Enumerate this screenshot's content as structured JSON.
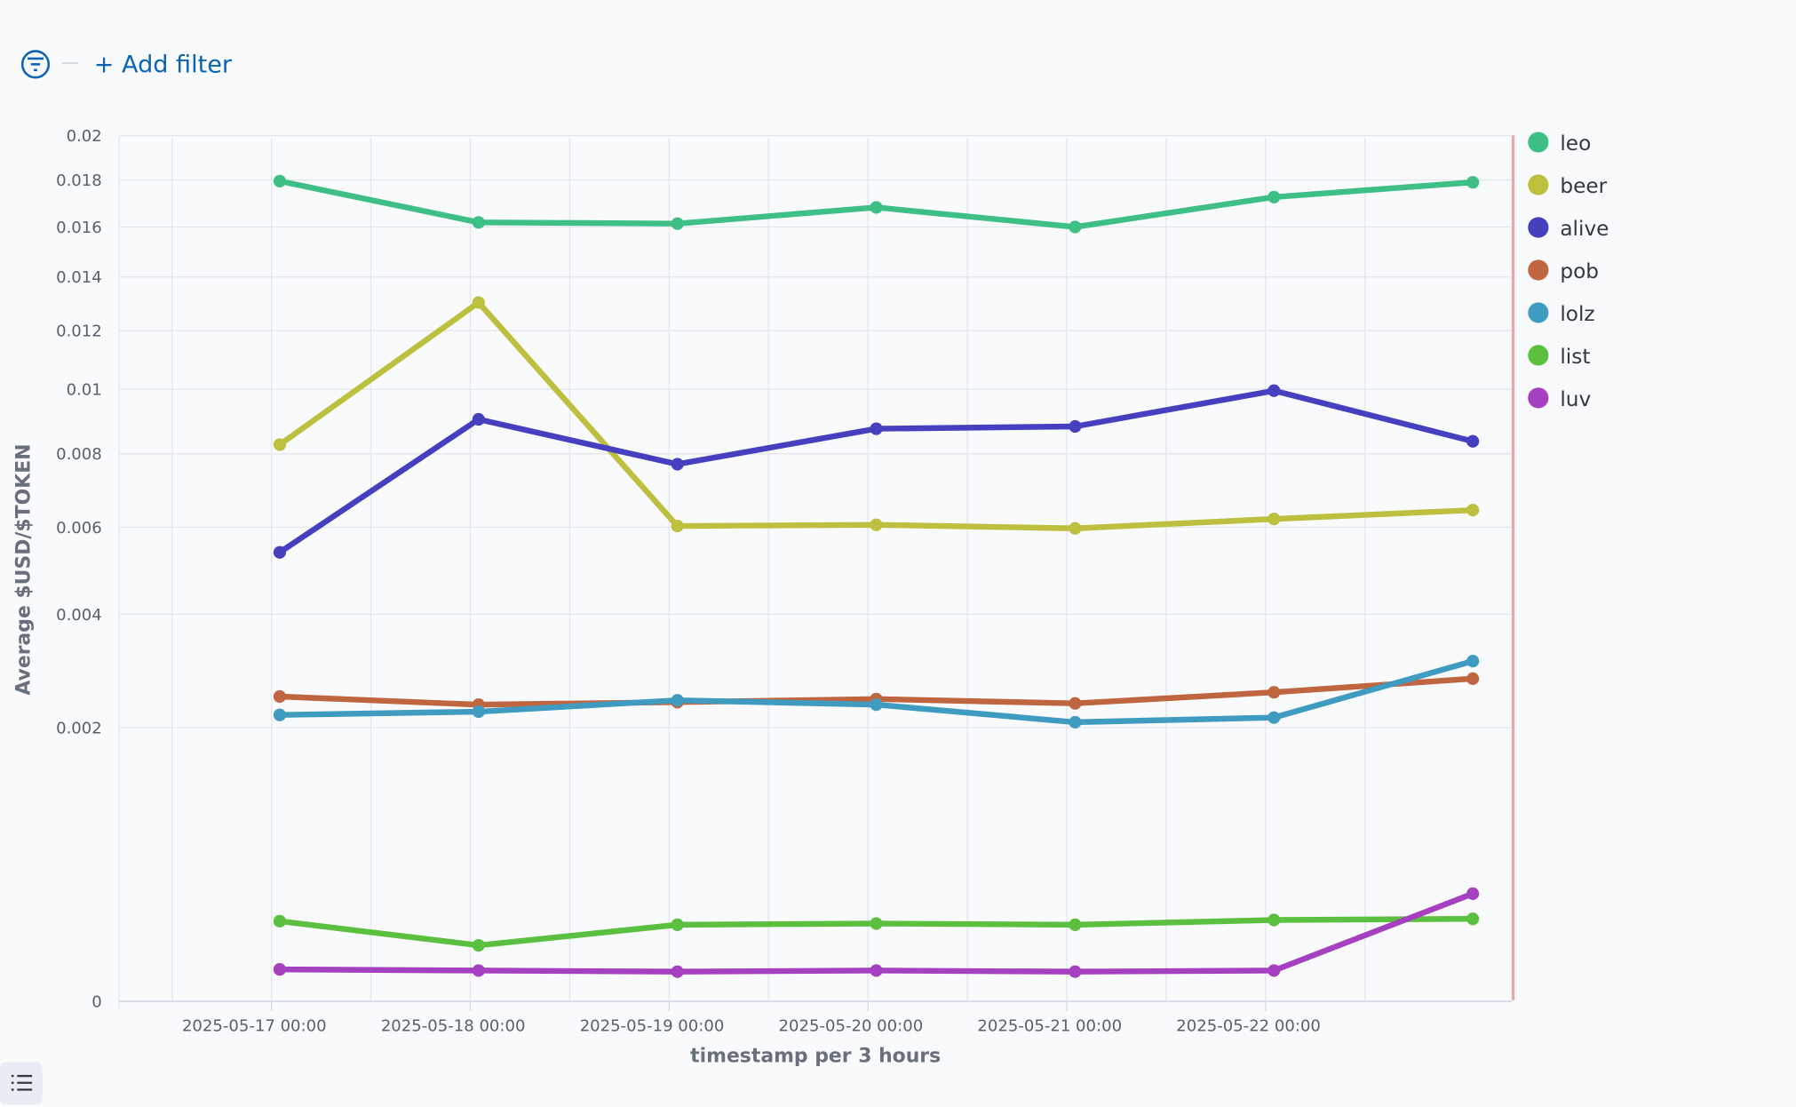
{
  "filter_bar": {
    "add_filter_label": "+ Add filter",
    "filter_icon": "filter-circle-icon"
  },
  "legend_toggle_icon": "list-icon",
  "chart_data": {
    "type": "line",
    "title": "",
    "xlabel": "timestamp per 3 hours",
    "ylabel": "Average $USD/$TOKEN",
    "y_scale": "sqrt",
    "ylim": [
      0,
      0.02
    ],
    "grid": true,
    "legend_position": "right",
    "x_tick_labels": [
      "2025-05-17 00:00",
      "2025-05-18 00:00",
      "2025-05-19 00:00",
      "2025-05-20 00:00",
      "2025-05-21 00:00",
      "2025-05-22 00:00"
    ],
    "y_tick_labels": [
      "0",
      "0.002",
      "0.004",
      "0.006",
      "0.008",
      "0.01",
      "0.012",
      "0.014",
      "0.016",
      "0.018",
      "0.02"
    ],
    "y_tick_values": [
      0,
      0.002,
      0.004,
      0.006,
      0.008,
      0.01,
      0.012,
      0.014,
      0.016,
      0.018,
      0.02
    ],
    "x": [
      "2025-05-17 01:00",
      "2025-05-18 01:00",
      "2025-05-19 01:00",
      "2025-05-20 01:00",
      "2025-05-21 01:00",
      "2025-05-22 01:00",
      "2025-05-23 01:00"
    ],
    "series": [
      {
        "name": "leo",
        "color": "#3ebf86",
        "values": [
          0.01795,
          0.01619,
          0.01614,
          0.01682,
          0.016,
          0.01726,
          0.0179
        ]
      },
      {
        "name": "beer",
        "color": "#bdbf3e",
        "values": [
          0.00827,
          0.01303,
          0.00603,
          0.00606,
          0.00597,
          0.00621,
          0.00644
        ]
      },
      {
        "name": "alive",
        "color": "#4640c0",
        "values": [
          0.00538,
          0.00904,
          0.0077,
          0.00875,
          0.00882,
          0.00995,
          0.00837
        ]
      },
      {
        "name": "pob",
        "color": "#bf6640",
        "values": [
          0.00248,
          0.00235,
          0.00239,
          0.00244,
          0.00237,
          0.00255,
          0.00278
        ]
      },
      {
        "name": "lolz",
        "color": "#3f9bc0",
        "values": [
          0.00219,
          0.00224,
          0.00242,
          0.00235,
          0.00208,
          0.00215,
          0.00309
        ]
      },
      {
        "name": "list",
        "color": "#5bc03f",
        "values": [
          0.000172,
          8.4e-05,
          0.000157,
          0.000162,
          0.000157,
          0.000177,
          0.000182
        ]
      },
      {
        "name": "luv",
        "color": "#a540c0",
        "values": [
          2.74e-05,
          2.55e-05,
          2.37e-05,
          2.55e-05,
          2.37e-05,
          2.55e-05,
          0.00031
        ]
      }
    ]
  }
}
